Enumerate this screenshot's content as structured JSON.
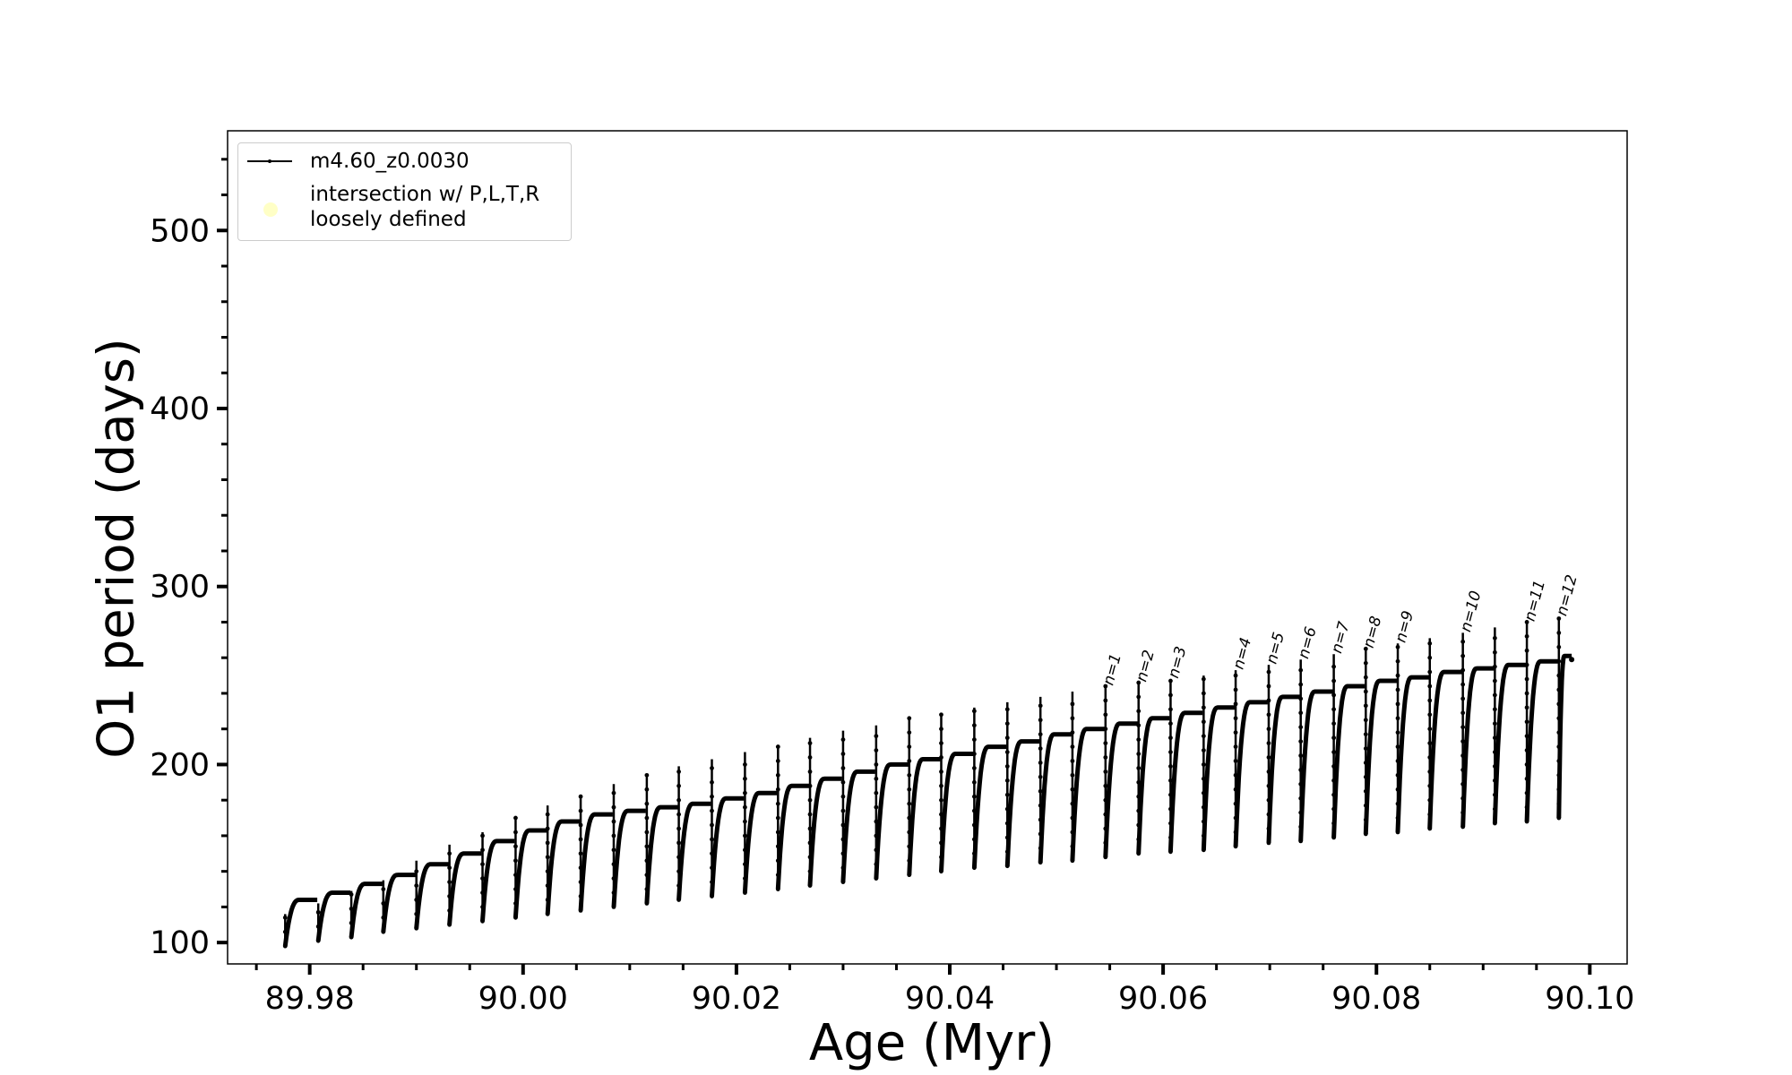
{
  "chart_data": {
    "type": "line",
    "title": "",
    "xlabel": "Age (Myr)",
    "ylabel": "O1 period (days)",
    "xlim": [
      89.9723,
      90.1035
    ],
    "ylim": [
      88,
      556
    ],
    "x_ticks": [
      "89.98",
      "90.00",
      "90.02",
      "90.04",
      "90.06",
      "90.08",
      "90.10"
    ],
    "x_tick_values": [
      89.98,
      90.0,
      90.02,
      90.04,
      90.06,
      90.08,
      90.1
    ],
    "y_ticks": [
      "100",
      "200",
      "300",
      "400",
      "500"
    ],
    "y_tick_values": [
      100,
      200,
      300,
      400,
      500
    ],
    "legend": {
      "position": "upper-left",
      "entries": [
        {
          "label": "m4.60_z0.0030",
          "marker": "line-with-dots",
          "color": "#000000"
        },
        {
          "label_lines": [
            "intersection w/ P,L,T,R",
            "loosely defined"
          ],
          "marker": "circle",
          "color": "#ffffc0"
        }
      ]
    },
    "series": [
      {
        "name": "m4.60_z0.0030",
        "color": "#000000",
        "cycle_start_age": [
          89.9777,
          89.9808,
          89.9839,
          89.9869,
          89.99,
          89.9931,
          89.9962,
          89.9993,
          90.0023,
          90.0054,
          90.0085,
          90.0116,
          90.0146,
          90.0177,
          90.0208,
          90.0239,
          90.0269,
          90.03,
          90.0331,
          90.0362,
          90.0392,
          90.0423,
          90.0454,
          90.0485,
          90.0515,
          90.0546,
          90.0577,
          90.0607,
          90.0638,
          90.0668,
          90.0699,
          90.0729,
          90.076,
          90.079,
          90.082,
          90.085,
          90.0881,
          90.0911,
          90.0941,
          90.0971
        ],
        "cycle_min_period": [
          98,
          101,
          103,
          106,
          108,
          110,
          112,
          114,
          116,
          118,
          120,
          122,
          124,
          126,
          128,
          130,
          132,
          134,
          136,
          138,
          140,
          142,
          143,
          145,
          146,
          148,
          150,
          151,
          152,
          154,
          156,
          157,
          159,
          161,
          162,
          164,
          165,
          167,
          168,
          170
        ],
        "cycle_max_period": [
          124,
          128,
          133,
          138,
          144,
          150,
          157,
          163,
          168,
          172,
          174,
          176,
          178,
          181,
          184,
          188,
          192,
          196,
          200,
          203,
          206,
          210,
          213,
          217,
          220,
          223,
          226,
          229,
          232,
          235,
          238,
          241,
          244,
          247,
          249,
          252,
          254,
          256,
          258,
          261
        ],
        "cycle_spike_period": [
          116,
          122,
          129,
          135,
          146,
          155,
          162,
          170,
          177,
          183,
          189,
          194,
          199,
          203,
          207,
          211,
          215,
          219,
          222,
          226,
          229,
          232,
          235,
          238,
          241,
          244,
          246,
          248,
          250,
          253,
          256,
          259,
          262,
          265,
          268,
          271,
          274,
          277,
          280,
          283
        ],
        "end_point": {
          "age": 90.0983,
          "period": 259
        }
      }
    ],
    "annotations": [
      {
        "text": "n=1",
        "age": 90.0546,
        "period": 244
      },
      {
        "text": "n=2",
        "age": 90.0577,
        "period": 246
      },
      {
        "text": "n=3",
        "age": 90.0607,
        "period": 248
      },
      {
        "text": "n=4",
        "age": 90.0668,
        "period": 253
      },
      {
        "text": "n=5",
        "age": 90.0699,
        "period": 256
      },
      {
        "text": "n=6",
        "age": 90.0729,
        "period": 259
      },
      {
        "text": "n=7",
        "age": 90.076,
        "period": 262
      },
      {
        "text": "n=8",
        "age": 90.079,
        "period": 265
      },
      {
        "text": "n=9",
        "age": 90.082,
        "period": 268
      },
      {
        "text": "n=10",
        "age": 90.0881,
        "period": 274
      },
      {
        "text": "n=11",
        "age": 90.0941,
        "period": 280
      },
      {
        "text": "n=12",
        "age": 90.0971,
        "period": 283
      }
    ],
    "grid": false
  }
}
